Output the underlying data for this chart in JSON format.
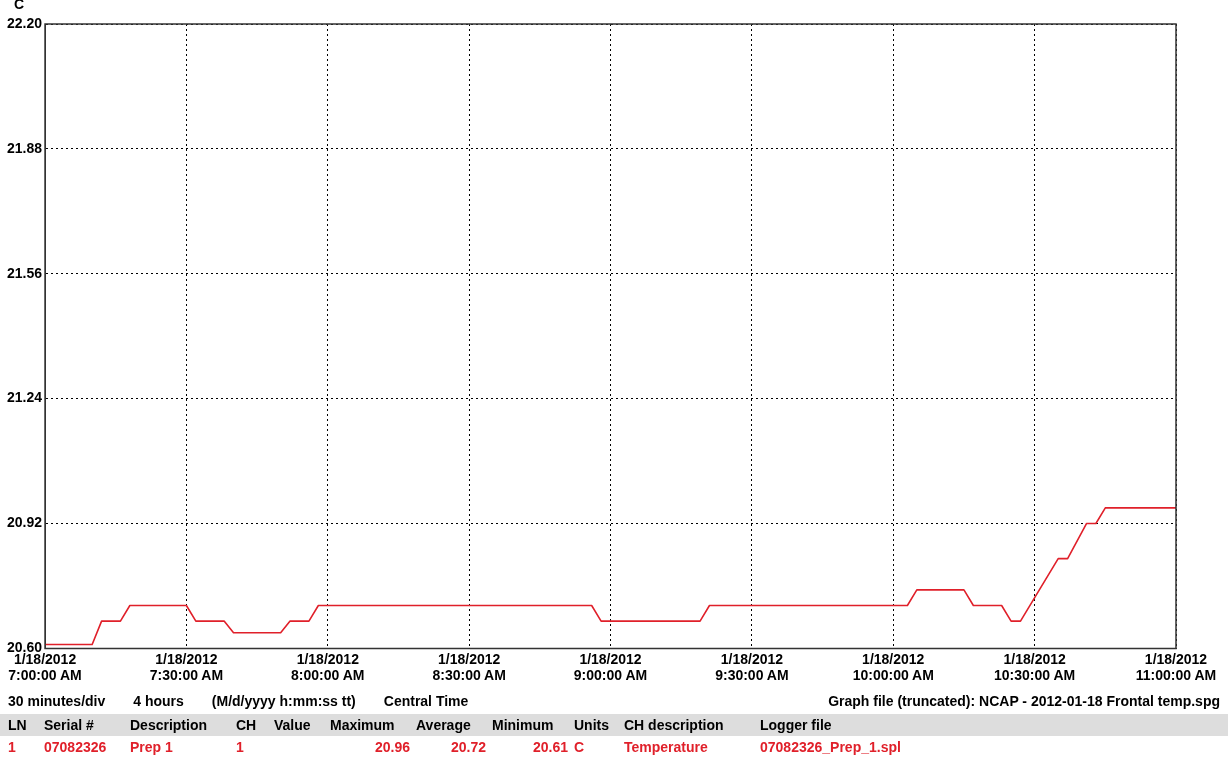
{
  "chart_data": {
    "type": "line",
    "ylabel": "C",
    "xlim": [
      "2012-01-18T07:00",
      "2012-01-18T11:00"
    ],
    "xticks": [
      {
        "value": "2012-01-18T07:00",
        "label": "1/18/2012 7:00:00 AM"
      },
      {
        "value": "2012-01-18T07:30",
        "label": "1/18/2012 7:30:00 AM"
      },
      {
        "value": "2012-01-18T08:00",
        "label": "1/18/2012 8:00:00 AM"
      },
      {
        "value": "2012-01-18T08:30",
        "label": "1/18/2012 8:30:00 AM"
      },
      {
        "value": "2012-01-18T09:00",
        "label": "1/18/2012 9:00:00 AM"
      },
      {
        "value": "2012-01-18T09:30",
        "label": "1/18/2012 9:30:00 AM"
      },
      {
        "value": "2012-01-18T10:00",
        "label": "1/18/2012 10:00:00 AM"
      },
      {
        "value": "2012-01-18T10:30",
        "label": "1/18/2012 10:30:00 AM"
      },
      {
        "value": "2012-01-18T11:00",
        "label": "1/18/2012 11:00:00 AM"
      }
    ],
    "ylim": [
      20.6,
      22.2
    ],
    "yticks": [
      {
        "value": 20.6,
        "label": "20.60"
      },
      {
        "value": 20.92,
        "label": "20.92"
      },
      {
        "value": 21.24,
        "label": "21.24"
      },
      {
        "value": 21.56,
        "label": "21.56"
      },
      {
        "value": 21.88,
        "label": "21.88"
      },
      {
        "value": 22.2,
        "label": "22.20"
      }
    ],
    "grid": true,
    "legend": false,
    "marker": "none",
    "line_style": "solid",
    "x": [
      "2012-01-18T07:00",
      "2012-01-18T07:10",
      "2012-01-18T07:12",
      "2012-01-18T07:16",
      "2012-01-18T07:18",
      "2012-01-18T07:30",
      "2012-01-18T07:32",
      "2012-01-18T07:38",
      "2012-01-18T07:40",
      "2012-01-18T07:50",
      "2012-01-18T07:52",
      "2012-01-18T07:56",
      "2012-01-18T07:58",
      "2012-01-18T08:56",
      "2012-01-18T08:58",
      "2012-01-18T09:19",
      "2012-01-18T09:21",
      "2012-01-18T10:03",
      "2012-01-18T10:05",
      "2012-01-18T10:15",
      "2012-01-18T10:17",
      "2012-01-18T10:23",
      "2012-01-18T10:25",
      "2012-01-18T10:27",
      "2012-01-18T10:35",
      "2012-01-18T10:37",
      "2012-01-18T10:41",
      "2012-01-18T10:43",
      "2012-01-18T10:45",
      "2012-01-18T11:00"
    ],
    "series": [
      {
        "color": "#e0202a",
        "values": [
          20.61,
          20.61,
          20.67,
          20.67,
          20.71,
          20.71,
          20.67,
          20.67,
          20.64,
          20.64,
          20.67,
          20.67,
          20.71,
          20.71,
          20.67,
          20.67,
          20.71,
          20.71,
          20.75,
          20.75,
          20.71,
          20.71,
          20.67,
          20.67,
          20.83,
          20.83,
          20.92,
          20.92,
          20.96,
          20.96
        ]
      }
    ],
    "annotations": [
      "30 minutes/div",
      "4 hours",
      "(M/d/yyyy h:mm:ss tt)",
      "Central Time",
      "Graph file (truncated): NCAP - 2012-01-18 Frontal temp.spg",
      "LN",
      "Serial #",
      "Description",
      "CH",
      "Value",
      "Maximum",
      "Average",
      "Minimum",
      "Units",
      "CH description",
      "Logger file",
      "1",
      "07082326",
      "Prep 1",
      "1",
      "20.96",
      "20.72",
      "20.61",
      "C",
      "Temperature",
      "07082326_Prep_1.spl"
    ]
  }
}
